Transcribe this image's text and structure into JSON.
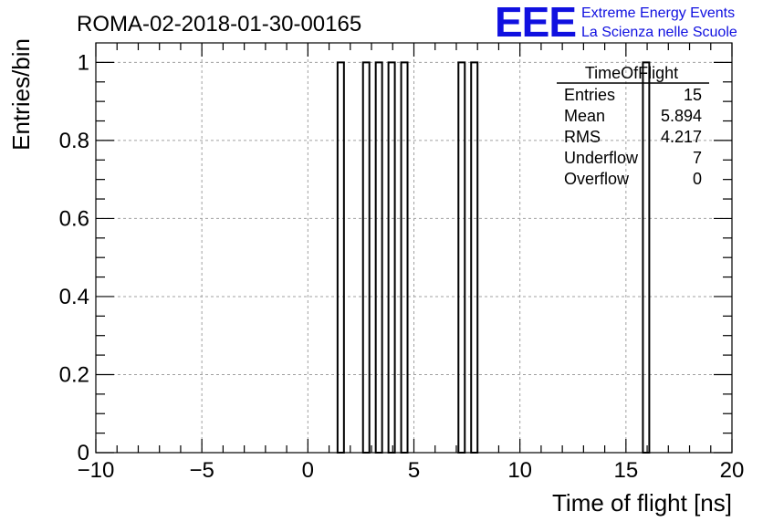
{
  "chart_data": {
    "type": "bar",
    "title": "ROMA-02-2018-01-30-00165",
    "xlabel": "Time of flight [ns]",
    "ylabel": "Entries/bin",
    "xlim": [
      -10,
      20
    ],
    "ylim": [
      0,
      1.05
    ],
    "xticks": [
      "−10",
      "−5",
      "0",
      "5",
      "10",
      "15",
      "20"
    ],
    "xtick_values": [
      -10,
      -5,
      0,
      5,
      10,
      15,
      20
    ],
    "yticks": [
      "0",
      "0.2",
      "0.4",
      "0.6",
      "0.8",
      "1"
    ],
    "ytick_values": [
      0,
      0.2,
      0.4,
      0.6,
      0.8,
      1
    ],
    "grid": true,
    "bin_width": 0.3,
    "bins": [
      {
        "x0": 1.4,
        "x1": 1.7,
        "count": 1
      },
      {
        "x0": 2.6,
        "x1": 2.9,
        "count": 1
      },
      {
        "x0": 3.2,
        "x1": 3.5,
        "count": 1
      },
      {
        "x0": 3.8,
        "x1": 4.1,
        "count": 1
      },
      {
        "x0": 4.4,
        "x1": 4.7,
        "count": 1
      },
      {
        "x0": 7.1,
        "x1": 7.4,
        "count": 1
      },
      {
        "x0": 7.7,
        "x1": 8.0,
        "count": 1
      },
      {
        "x0": 15.8,
        "x1": 16.1,
        "count": 1
      }
    ],
    "stats_box": {
      "title": "TimeOfFlight",
      "rows": [
        {
          "label": "Entries",
          "value": "15"
        },
        {
          "label": "Mean",
          "value": "5.894"
        },
        {
          "label": "RMS",
          "value": "4.217"
        },
        {
          "label": "Underflow",
          "value": "7"
        },
        {
          "label": "Overflow",
          "value": "0"
        }
      ]
    }
  },
  "logo": {
    "mark": "EEE",
    "line1": "Extreme Energy Events",
    "line2": "La Scienza nelle Scuole",
    "color": "#1010e0"
  },
  "colors": {
    "axis": "#000000",
    "grid": "#a0a0a0",
    "bars": "#000000"
  }
}
